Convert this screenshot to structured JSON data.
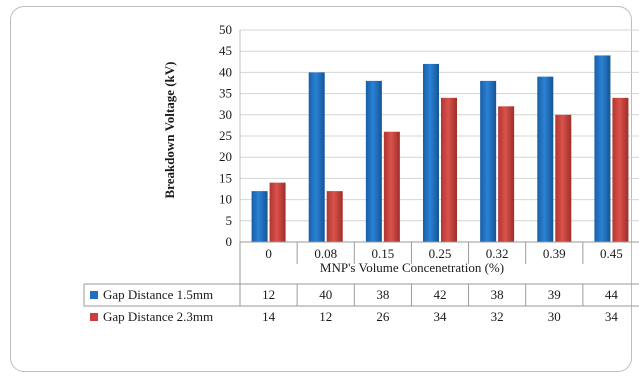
{
  "chart_data": {
    "type": "bar",
    "title": "",
    "xlabel": "MNP's Volume Concenetration (%)",
    "ylabel": "Breakdown Voltage (kV)",
    "ylim": [
      0,
      50
    ],
    "yticks": [
      "0",
      "5",
      "10",
      "15",
      "20",
      "25",
      "30",
      "35",
      "40",
      "45",
      "50"
    ],
    "categories": [
      "0",
      "0.08",
      "0.15",
      "0.25",
      "0.32",
      "0.39",
      "0.45"
    ],
    "grid": true,
    "legend": "data-table",
    "series": [
      {
        "name": "Gap Distance 1.5mm",
        "color": "#1f6fc0",
        "values": [
          12,
          40,
          38,
          42,
          38,
          39,
          44
        ]
      },
      {
        "name": "Gap Distance 2.3mm",
        "color": "#c9403a",
        "values": [
          14,
          12,
          26,
          34,
          32,
          30,
          34
        ]
      }
    ]
  }
}
